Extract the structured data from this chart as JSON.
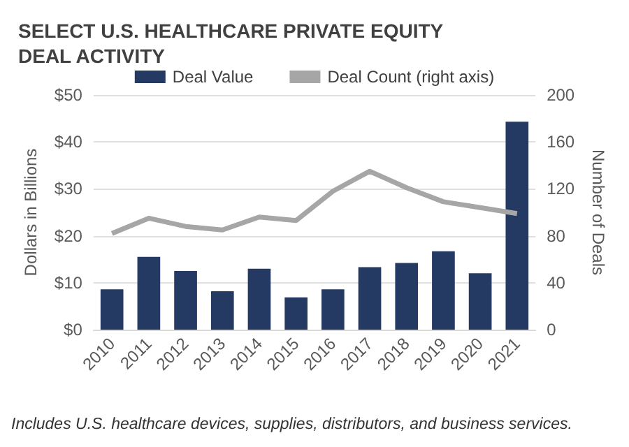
{
  "chart_data": {
    "type": "bar",
    "title": "SELECT U.S. HEALTHCARE PRIVATE EQUITY DEAL ACTIVITY",
    "ylabel": "Dollars in Billions",
    "y2label": "Number of Deals",
    "categories": [
      "2010",
      "2011",
      "2012",
      "2013",
      "2014",
      "2015",
      "2016",
      "2017",
      "2018",
      "2019",
      "2020",
      "2021"
    ],
    "series": [
      {
        "name": "Deal Value",
        "color": "#243a63",
        "values": [
          8.6,
          15.5,
          12.5,
          8.2,
          13.0,
          6.9,
          8.6,
          13.3,
          14.2,
          16.7,
          12.0,
          44.3
        ]
      },
      {
        "name": "Deal Count (right axis)",
        "type": "line",
        "axis": "y2",
        "color": "#a6a6a6",
        "values": [
          82,
          95,
          88,
          85,
          96,
          93,
          118,
          135,
          121,
          109,
          104,
          99
        ]
      }
    ],
    "ylim": [
      0,
      50
    ],
    "yticks": [
      {
        "value": 0,
        "label": "$0"
      },
      {
        "value": 10,
        "label": "$10"
      },
      {
        "value": 20,
        "label": "$20"
      },
      {
        "value": 30,
        "label": "$30"
      },
      {
        "value": 40,
        "label": "$40"
      },
      {
        "value": 50,
        "label": "$50"
      }
    ],
    "y2lim": [
      0,
      200
    ],
    "y2ticks": [
      0,
      40,
      80,
      120,
      160,
      200
    ],
    "grid": "y",
    "legend": "top",
    "line_style": "solid",
    "annotations": [
      "Includes U.S. healthcare devices, supplies, distributors, and business services."
    ]
  }
}
